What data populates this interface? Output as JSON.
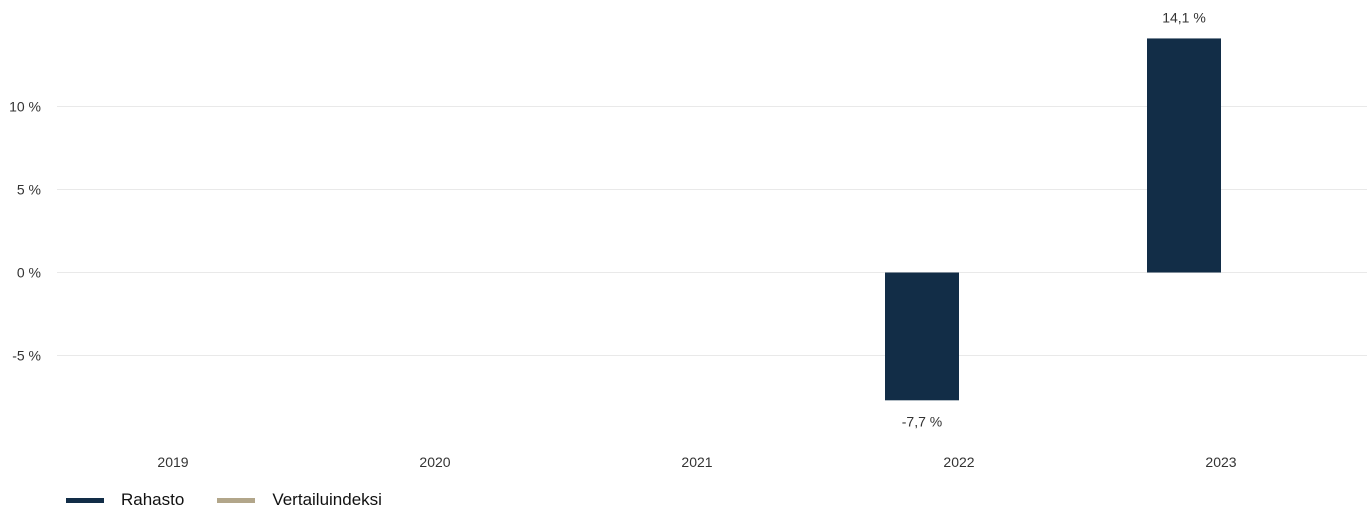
{
  "chart_data": {
    "type": "bar",
    "categories": [
      "2019",
      "2020",
      "2021",
      "2022",
      "2023"
    ],
    "series": [
      {
        "name": "Rahasto",
        "color": "#122d47",
        "values": [
          null,
          null,
          null,
          -7.7,
          14.1
        ],
        "labels": [
          null,
          null,
          null,
          "-7,7 %",
          "14,1 %"
        ]
      },
      {
        "name": "Vertailuindeksi",
        "color": "#b2a68a",
        "values": [
          null,
          null,
          null,
          null,
          null
        ],
        "labels": [
          null,
          null,
          null,
          null,
          null
        ]
      }
    ],
    "y_ticks": [
      {
        "value": 10,
        "label": "10 %"
      },
      {
        "value": 5,
        "label": "5 %"
      },
      {
        "value": 0,
        "label": "0 %"
      },
      {
        "value": -5,
        "label": "-5 %"
      }
    ],
    "ylim": [
      -10,
      16
    ],
    "grid": true,
    "legend_position": "bottom-left"
  }
}
